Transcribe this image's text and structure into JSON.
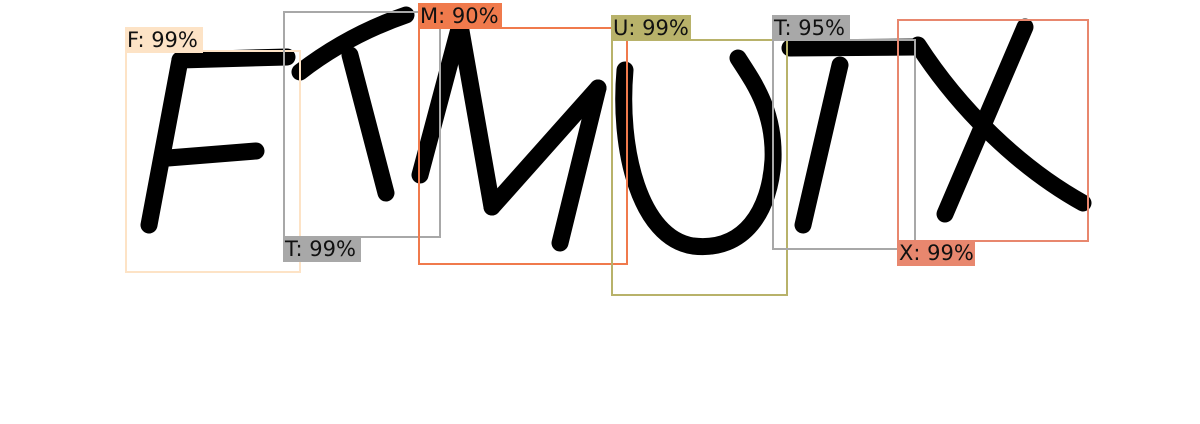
{
  "detections": [
    {
      "label": "F: 99%",
      "color": "#fde3c6"
    },
    {
      "label": "T: 99%",
      "color": "#a8a8a8"
    },
    {
      "label": "M: 90%",
      "color": "#f07a4c"
    },
    {
      "label": "U: 99%",
      "color": "#b8b26a"
    },
    {
      "label": "T: 95%",
      "color": "#a8a8a8"
    },
    {
      "label": "X: 99%",
      "color": "#e8876e"
    }
  ]
}
